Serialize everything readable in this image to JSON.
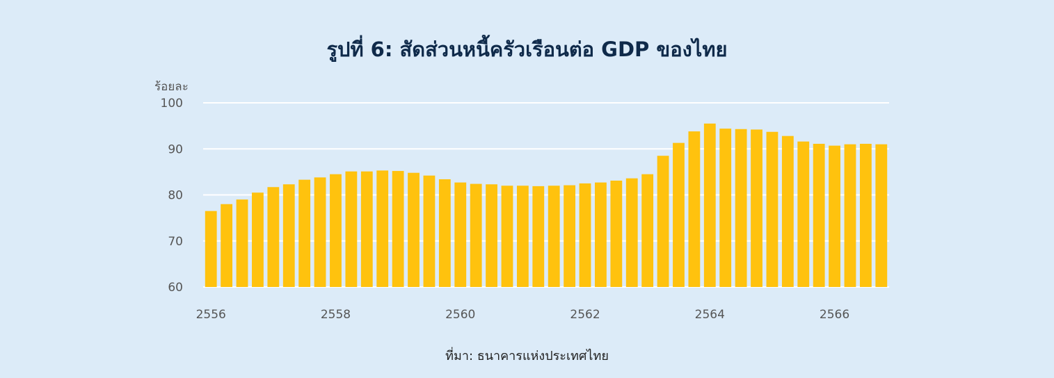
{
  "chart_data": {
    "type": "bar",
    "title": "รูปที่ 6: สัดส่วนหนี้ครัวเรือนต่อ GDP ของไทย",
    "ylabel": "ร้อยละ",
    "xlabel": "",
    "source": "ที่มา: ธนาคารแห่งประเทศไทย",
    "ylim": [
      60,
      100
    ],
    "yticks": [
      60,
      70,
      80,
      90,
      100
    ],
    "grid": true,
    "bar_color": "#ffc20e",
    "grid_color": "#ffffff",
    "x_tick_labels": [
      {
        "label": "2556",
        "index": 0
      },
      {
        "label": "2558",
        "index": 8
      },
      {
        "label": "2560",
        "index": 16
      },
      {
        "label": "2562",
        "index": 24
      },
      {
        "label": "2564",
        "index": 32
      },
      {
        "label": "2566",
        "index": 40
      }
    ],
    "values": [
      76.5,
      78.0,
      79.0,
      80.5,
      81.7,
      82.3,
      83.3,
      83.8,
      84.5,
      85.1,
      85.1,
      85.3,
      85.2,
      84.8,
      84.2,
      83.4,
      82.7,
      82.4,
      82.3,
      82.0,
      82.0,
      81.9,
      82.0,
      82.1,
      82.5,
      82.7,
      83.1,
      83.6,
      84.5,
      88.5,
      91.3,
      93.8,
      95.5,
      94.4,
      94.3,
      94.2,
      93.7,
      92.8,
      91.6,
      91.1,
      90.7,
      91.0,
      91.1,
      91.0
    ]
  }
}
